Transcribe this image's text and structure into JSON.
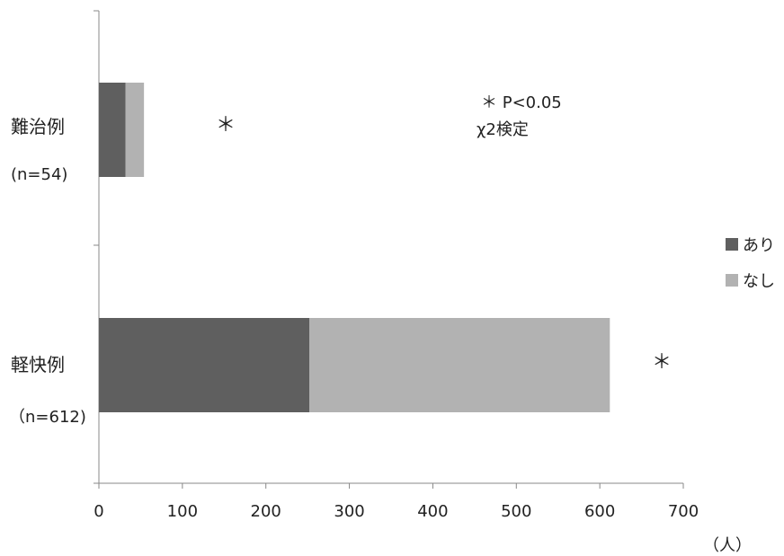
{
  "chart_data": {
    "type": "bar",
    "orientation": "horizontal",
    "stacked": true,
    "categories": [
      "難治例",
      "軽快例"
    ],
    "category_counts": [
      "(n=54)",
      "（n=612)"
    ],
    "series": [
      {
        "name": "あり",
        "values": [
          32,
          252
        ],
        "color": "#5f5f5f"
      },
      {
        "name": "なし",
        "values": [
          22,
          360
        ],
        "color": "#b2b2b2"
      }
    ],
    "xlim": [
      0,
      700
    ],
    "xticks": [
      "0",
      "100",
      "200",
      "300",
      "400",
      "500",
      "600",
      "700"
    ],
    "x_unit": "（人）",
    "significance_marks": [
      "＊",
      "＊"
    ],
    "annotation": [
      "＊ P<0.05",
      "χ2検定"
    ],
    "legend_position": "right",
    "grid": false
  }
}
